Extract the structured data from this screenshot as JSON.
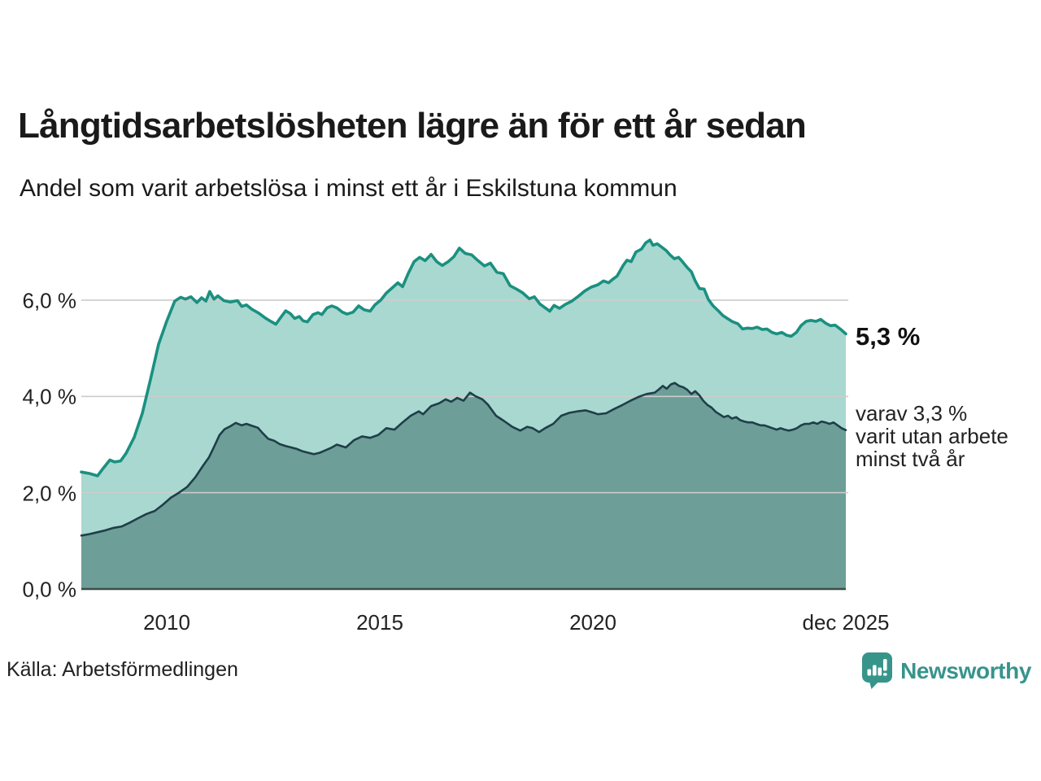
{
  "header": {
    "title": "Långtidsarbetslösheten lägre än för ett år sedan",
    "subtitle": "Andel som varit arbetslösa i minst ett år i Eskilstuna kommun"
  },
  "annotations": {
    "latest_total": "5,3 %",
    "secondary_note": "varav 3,3 %\nvarit utan arbete\nminst två år"
  },
  "footer": {
    "source": "Källa: Arbetsförmedlingen",
    "brand": "Newsworthy"
  },
  "colors": {
    "series1_line": "#1b9080",
    "series1_fill": "#a8d8d0",
    "series2_line": "#1f3e48",
    "series2_fill": "#6d9e98",
    "gridline": "#cccccc",
    "baseline": "#3f4a48",
    "brand_teal": "#37948b",
    "text": "#1a1a1a"
  },
  "chart_data": {
    "type": "area",
    "title": "Långtidsarbetslösheten lägre än för ett år sedan",
    "subtitle": "Andel som varit arbetslösa i minst ett år i Eskilstuna kommun",
    "xlabel": "",
    "ylabel": "",
    "xlim": [
      2008.0,
      2025.92
    ],
    "ylim": [
      0,
      7.3
    ],
    "grid": "horizontal",
    "legend_position": "right-annotations",
    "y_ticks": [
      {
        "label": "0,0 %",
        "value": 0
      },
      {
        "label": "2,0 %",
        "value": 2
      },
      {
        "label": "4,0 %",
        "value": 4
      },
      {
        "label": "6,0 %",
        "value": 6
      }
    ],
    "x_ticks": [
      {
        "label": "2010",
        "value": 2010
      },
      {
        "label": "2015",
        "value": 2015
      },
      {
        "label": "2020",
        "value": 2020
      },
      {
        "label": "dec 2025",
        "value": 2025.92
      }
    ],
    "series": [
      {
        "name": "Arbetslösa minst ett år",
        "end_label": "5,3 %",
        "line_color": "#1b9080",
        "fill_color": "#a8d8d0",
        "points": [
          [
            2008.0,
            2.43
          ],
          [
            2008.19,
            2.4
          ],
          [
            2008.38,
            2.35
          ],
          [
            2008.48,
            2.47
          ],
          [
            2008.67,
            2.68
          ],
          [
            2008.78,
            2.64
          ],
          [
            2008.92,
            2.66
          ],
          [
            2009.05,
            2.82
          ],
          [
            2009.24,
            3.15
          ],
          [
            2009.43,
            3.65
          ],
          [
            2009.62,
            4.35
          ],
          [
            2009.81,
            5.08
          ],
          [
            2010.0,
            5.56
          ],
          [
            2010.19,
            5.98
          ],
          [
            2010.33,
            6.06
          ],
          [
            2010.44,
            6.02
          ],
          [
            2010.57,
            6.07
          ],
          [
            2010.71,
            5.95
          ],
          [
            2010.82,
            6.05
          ],
          [
            2010.92,
            5.98
          ],
          [
            2011.01,
            6.18
          ],
          [
            2011.11,
            6.02
          ],
          [
            2011.2,
            6.09
          ],
          [
            2011.34,
            5.99
          ],
          [
            2011.49,
            5.96
          ],
          [
            2011.66,
            5.99
          ],
          [
            2011.76,
            5.87
          ],
          [
            2011.87,
            5.9
          ],
          [
            2012.0,
            5.81
          ],
          [
            2012.16,
            5.73
          ],
          [
            2012.31,
            5.63
          ],
          [
            2012.44,
            5.56
          ],
          [
            2012.56,
            5.5
          ],
          [
            2012.69,
            5.66
          ],
          [
            2012.79,
            5.78
          ],
          [
            2012.9,
            5.72
          ],
          [
            2013.0,
            5.62
          ],
          [
            2013.11,
            5.66
          ],
          [
            2013.2,
            5.57
          ],
          [
            2013.3,
            5.55
          ],
          [
            2013.43,
            5.7
          ],
          [
            2013.55,
            5.74
          ],
          [
            2013.64,
            5.7
          ],
          [
            2013.76,
            5.84
          ],
          [
            2013.87,
            5.88
          ],
          [
            2013.99,
            5.84
          ],
          [
            2014.12,
            5.75
          ],
          [
            2014.23,
            5.71
          ],
          [
            2014.37,
            5.75
          ],
          [
            2014.5,
            5.88
          ],
          [
            2014.63,
            5.8
          ],
          [
            2014.77,
            5.77
          ],
          [
            2014.88,
            5.9
          ],
          [
            2015.02,
            6.0
          ],
          [
            2015.15,
            6.15
          ],
          [
            2015.28,
            6.25
          ],
          [
            2015.42,
            6.36
          ],
          [
            2015.53,
            6.28
          ],
          [
            2015.66,
            6.55
          ],
          [
            2015.8,
            6.8
          ],
          [
            2015.93,
            6.89
          ],
          [
            2016.06,
            6.82
          ],
          [
            2016.2,
            6.95
          ],
          [
            2016.33,
            6.8
          ],
          [
            2016.46,
            6.72
          ],
          [
            2016.6,
            6.8
          ],
          [
            2016.73,
            6.9
          ],
          [
            2016.86,
            7.08
          ],
          [
            2017.0,
            6.97
          ],
          [
            2017.15,
            6.94
          ],
          [
            2017.3,
            6.82
          ],
          [
            2017.45,
            6.71
          ],
          [
            2017.59,
            6.77
          ],
          [
            2017.74,
            6.58
          ],
          [
            2017.89,
            6.55
          ],
          [
            2018.05,
            6.3
          ],
          [
            2018.2,
            6.23
          ],
          [
            2018.35,
            6.15
          ],
          [
            2018.5,
            6.03
          ],
          [
            2018.62,
            6.07
          ],
          [
            2018.75,
            5.92
          ],
          [
            2018.89,
            5.83
          ],
          [
            2018.98,
            5.77
          ],
          [
            2019.08,
            5.89
          ],
          [
            2019.21,
            5.83
          ],
          [
            2019.34,
            5.91
          ],
          [
            2019.5,
            5.98
          ],
          [
            2019.65,
            6.08
          ],
          [
            2019.8,
            6.19
          ],
          [
            2019.95,
            6.27
          ],
          [
            2020.11,
            6.32
          ],
          [
            2020.24,
            6.4
          ],
          [
            2020.36,
            6.36
          ],
          [
            2020.45,
            6.43
          ],
          [
            2020.56,
            6.5
          ],
          [
            2020.7,
            6.72
          ],
          [
            2020.79,
            6.83
          ],
          [
            2020.89,
            6.8
          ],
          [
            2021.0,
            7.0
          ],
          [
            2021.13,
            7.06
          ],
          [
            2021.23,
            7.19
          ],
          [
            2021.33,
            7.25
          ],
          [
            2021.4,
            7.14
          ],
          [
            2021.5,
            7.17
          ],
          [
            2021.59,
            7.11
          ],
          [
            2021.71,
            7.03
          ],
          [
            2021.8,
            6.94
          ],
          [
            2021.9,
            6.86
          ],
          [
            2022.0,
            6.89
          ],
          [
            2022.09,
            6.8
          ],
          [
            2022.2,
            6.68
          ],
          [
            2022.3,
            6.59
          ],
          [
            2022.39,
            6.4
          ],
          [
            2022.49,
            6.24
          ],
          [
            2022.6,
            6.23
          ],
          [
            2022.7,
            6.01
          ],
          [
            2022.81,
            5.88
          ],
          [
            2022.93,
            5.78
          ],
          [
            2023.04,
            5.68
          ],
          [
            2023.16,
            5.61
          ],
          [
            2023.27,
            5.55
          ],
          [
            2023.39,
            5.51
          ],
          [
            2023.5,
            5.4
          ],
          [
            2023.61,
            5.42
          ],
          [
            2023.73,
            5.41
          ],
          [
            2023.84,
            5.44
          ],
          [
            2023.96,
            5.39
          ],
          [
            2024.07,
            5.4
          ],
          [
            2024.19,
            5.33
          ],
          [
            2024.3,
            5.3
          ],
          [
            2024.42,
            5.33
          ],
          [
            2024.53,
            5.27
          ],
          [
            2024.64,
            5.25
          ],
          [
            2024.76,
            5.33
          ],
          [
            2024.87,
            5.47
          ],
          [
            2024.99,
            5.56
          ],
          [
            2025.1,
            5.58
          ],
          [
            2025.22,
            5.56
          ],
          [
            2025.33,
            5.6
          ],
          [
            2025.45,
            5.52
          ],
          [
            2025.56,
            5.47
          ],
          [
            2025.67,
            5.48
          ],
          [
            2025.79,
            5.4
          ],
          [
            2025.92,
            5.3
          ]
        ]
      },
      {
        "name": "Arbetslösa minst två år",
        "end_label": "varav 3,3 %",
        "line_color": "#1f3e48",
        "fill_color": "#6d9e98",
        "points": [
          [
            2008.0,
            1.11
          ],
          [
            2008.19,
            1.14
          ],
          [
            2008.38,
            1.18
          ],
          [
            2008.57,
            1.22
          ],
          [
            2008.76,
            1.27
          ],
          [
            2008.95,
            1.3
          ],
          [
            2009.14,
            1.38
          ],
          [
            2009.33,
            1.47
          ],
          [
            2009.53,
            1.56
          ],
          [
            2009.72,
            1.62
          ],
          [
            2009.91,
            1.75
          ],
          [
            2010.1,
            1.9
          ],
          [
            2010.29,
            2.0
          ],
          [
            2010.48,
            2.12
          ],
          [
            2010.67,
            2.32
          ],
          [
            2010.86,
            2.57
          ],
          [
            2010.99,
            2.73
          ],
          [
            2011.11,
            2.95
          ],
          [
            2011.24,
            3.2
          ],
          [
            2011.36,
            3.32
          ],
          [
            2011.49,
            3.38
          ],
          [
            2011.62,
            3.45
          ],
          [
            2011.76,
            3.4
          ],
          [
            2011.87,
            3.43
          ],
          [
            2012.0,
            3.39
          ],
          [
            2012.14,
            3.35
          ],
          [
            2012.25,
            3.24
          ],
          [
            2012.38,
            3.12
          ],
          [
            2012.52,
            3.08
          ],
          [
            2012.65,
            3.01
          ],
          [
            2012.79,
            2.97
          ],
          [
            2012.92,
            2.94
          ],
          [
            2013.05,
            2.91
          ],
          [
            2013.19,
            2.86
          ],
          [
            2013.32,
            2.83
          ],
          [
            2013.45,
            2.8
          ],
          [
            2013.59,
            2.83
          ],
          [
            2013.72,
            2.88
          ],
          [
            2013.85,
            2.93
          ],
          [
            2013.99,
            3.0
          ],
          [
            2014.2,
            2.94
          ],
          [
            2014.39,
            3.09
          ],
          [
            2014.58,
            3.17
          ],
          [
            2014.77,
            3.14
          ],
          [
            2014.96,
            3.2
          ],
          [
            2015.15,
            3.34
          ],
          [
            2015.34,
            3.31
          ],
          [
            2015.53,
            3.46
          ],
          [
            2015.72,
            3.6
          ],
          [
            2015.91,
            3.69
          ],
          [
            2016.01,
            3.63
          ],
          [
            2016.2,
            3.8
          ],
          [
            2016.39,
            3.86
          ],
          [
            2016.54,
            3.94
          ],
          [
            2016.67,
            3.89
          ],
          [
            2016.81,
            3.97
          ],
          [
            2016.96,
            3.91
          ],
          [
            2017.11,
            4.08
          ],
          [
            2017.25,
            4.0
          ],
          [
            2017.4,
            3.94
          ],
          [
            2017.53,
            3.83
          ],
          [
            2017.72,
            3.6
          ],
          [
            2017.91,
            3.49
          ],
          [
            2018.1,
            3.37
          ],
          [
            2018.29,
            3.29
          ],
          [
            2018.45,
            3.37
          ],
          [
            2018.58,
            3.34
          ],
          [
            2018.73,
            3.26
          ],
          [
            2018.87,
            3.34
          ],
          [
            2019.06,
            3.43
          ],
          [
            2019.25,
            3.6
          ],
          [
            2019.44,
            3.66
          ],
          [
            2019.63,
            3.69
          ],
          [
            2019.82,
            3.71
          ],
          [
            2020.01,
            3.66
          ],
          [
            2020.11,
            3.63
          ],
          [
            2020.3,
            3.65
          ],
          [
            2020.49,
            3.74
          ],
          [
            2020.68,
            3.82
          ],
          [
            2020.87,
            3.91
          ],
          [
            2021.06,
            3.99
          ],
          [
            2021.25,
            4.05
          ],
          [
            2021.44,
            4.08
          ],
          [
            2021.53,
            4.14
          ],
          [
            2021.63,
            4.22
          ],
          [
            2021.72,
            4.16
          ],
          [
            2021.82,
            4.25
          ],
          [
            2021.91,
            4.28
          ],
          [
            2022.01,
            4.22
          ],
          [
            2022.11,
            4.19
          ],
          [
            2022.2,
            4.14
          ],
          [
            2022.3,
            4.05
          ],
          [
            2022.39,
            4.11
          ],
          [
            2022.49,
            4.02
          ],
          [
            2022.58,
            3.91
          ],
          [
            2022.68,
            3.82
          ],
          [
            2022.77,
            3.77
          ],
          [
            2022.87,
            3.68
          ],
          [
            2022.96,
            3.63
          ],
          [
            2023.06,
            3.57
          ],
          [
            2023.16,
            3.6
          ],
          [
            2023.25,
            3.54
          ],
          [
            2023.35,
            3.57
          ],
          [
            2023.44,
            3.51
          ],
          [
            2023.54,
            3.48
          ],
          [
            2023.63,
            3.46
          ],
          [
            2023.73,
            3.46
          ],
          [
            2023.82,
            3.43
          ],
          [
            2023.92,
            3.4
          ],
          [
            2024.01,
            3.4
          ],
          [
            2024.11,
            3.37
          ],
          [
            2024.2,
            3.34
          ],
          [
            2024.3,
            3.31
          ],
          [
            2024.39,
            3.34
          ],
          [
            2024.49,
            3.31
          ],
          [
            2024.58,
            3.29
          ],
          [
            2024.68,
            3.31
          ],
          [
            2024.77,
            3.34
          ],
          [
            2024.87,
            3.4
          ],
          [
            2024.96,
            3.43
          ],
          [
            2025.06,
            3.43
          ],
          [
            2025.16,
            3.46
          ],
          [
            2025.25,
            3.43
          ],
          [
            2025.35,
            3.48
          ],
          [
            2025.44,
            3.46
          ],
          [
            2025.54,
            3.43
          ],
          [
            2025.63,
            3.46
          ],
          [
            2025.73,
            3.4
          ],
          [
            2025.82,
            3.34
          ],
          [
            2025.92,
            3.3
          ]
        ]
      }
    ]
  }
}
